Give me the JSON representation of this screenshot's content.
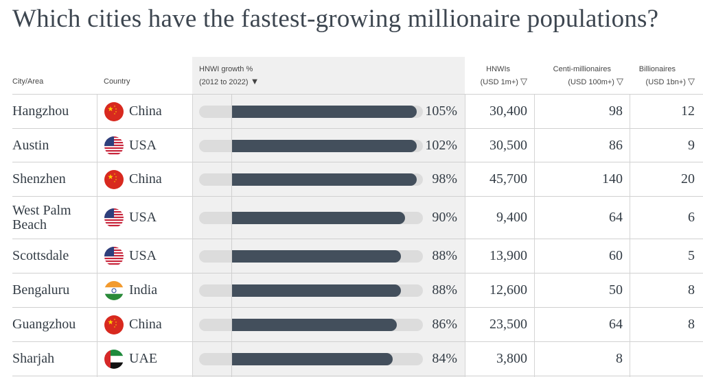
{
  "title": "Which cities have the fastest-growing millionaire populations?",
  "headers": {
    "city": "City/Area",
    "country": "Country",
    "growth1": "HNWI growth %",
    "growth2": "(2012 to 2022)",
    "hnwi1": "HNWIs",
    "hnwi2": "(USD 1m+)",
    "centi1": "Centi-millionaires",
    "centi2": "(USD 100m+)",
    "bil1": "Billionaires",
    "bil2": "(USD 1bn+)",
    "sort_active": "▼",
    "sort": "▽"
  },
  "chart_data": {
    "type": "table",
    "columns": [
      "City/Area",
      "Country",
      "HNWI growth % (2012 to 2022)",
      "HNWIs (USD 1m+)",
      "Centi-millionaires (USD 100m+)",
      "Billionaires (USD 1bn+)"
    ],
    "rows": [
      {
        "city": "Hangzhou",
        "country": "China",
        "growth": 105,
        "growth_label": "105%",
        "hnwi": "30,400",
        "centi": "98",
        "bil": "12"
      },
      {
        "city": "Austin",
        "country": "USA",
        "growth": 102,
        "growth_label": "102%",
        "hnwi": "30,500",
        "centi": "86",
        "bil": "9"
      },
      {
        "city": "Shenzhen",
        "country": "China",
        "growth": 98,
        "growth_label": "98%",
        "hnwi": "45,700",
        "centi": "140",
        "bil": "20"
      },
      {
        "city": "West Palm Beach",
        "country": "USA",
        "growth": 90,
        "growth_label": "90%",
        "hnwi": "9,400",
        "centi": "64",
        "bil": "6"
      },
      {
        "city": "Scottsdale",
        "country": "USA",
        "growth": 88,
        "growth_label": "88%",
        "hnwi": "13,900",
        "centi": "60",
        "bil": "5"
      },
      {
        "city": "Bengaluru",
        "country": "India",
        "growth": 88,
        "growth_label": "88%",
        "hnwi": "12,600",
        "centi": "50",
        "bil": "8"
      },
      {
        "city": "Guangzhou",
        "country": "China",
        "growth": 86,
        "growth_label": "86%",
        "hnwi": "23,500",
        "centi": "64",
        "bil": "8"
      },
      {
        "city": "Sharjah",
        "country": "UAE",
        "growth": 84,
        "growth_label": "84%",
        "hnwi": "3,800",
        "centi": "8",
        "bil": ""
      }
    ]
  }
}
